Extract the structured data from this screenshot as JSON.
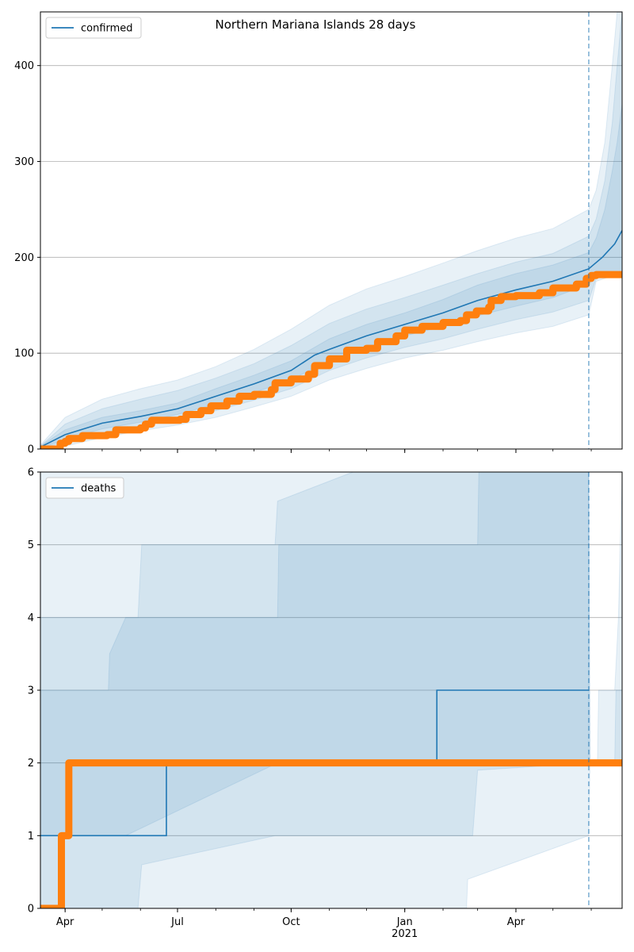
{
  "figure": {
    "title": "Northern Mariana Islands 28 days"
  },
  "colors": {
    "model": "#1f77b4",
    "observed": "#ff7f0e",
    "band": "#1f77b4",
    "grid": "#b0b0b0",
    "forecast_line": "#1f77b4"
  },
  "chart_data": [
    {
      "type": "line",
      "panel": "top",
      "legend": [
        "confirmed"
      ],
      "legend_loc": "upper left",
      "xlabel": "",
      "ylabel": "",
      "xlim": [
        "2020-03-12",
        "2021-06-26"
      ],
      "ylim": [
        0,
        456
      ],
      "y_ticks": [
        0,
        100,
        200,
        300,
        400
      ],
      "grid": "horizontal",
      "forecast_start": "2021-05-30",
      "series": [
        {
          "name": "confirmed",
          "kind": "model",
          "points": [
            [
              "2020-03-12",
              2
            ],
            [
              "2020-04-01",
              15
            ],
            [
              "2020-05-01",
              27
            ],
            [
              "2020-06-01",
              34
            ],
            [
              "2020-07-01",
              42
            ],
            [
              "2020-08-01",
              55
            ],
            [
              "2020-09-01",
              68
            ],
            [
              "2020-10-01",
              82
            ],
            [
              "2020-10-20",
              98
            ],
            [
              "2020-11-01",
              104
            ],
            [
              "2020-12-01",
              118
            ],
            [
              "2021-01-01",
              130
            ],
            [
              "2021-02-01",
              142
            ],
            [
              "2021-03-01",
              155
            ],
            [
              "2021-04-01",
              166
            ],
            [
              "2021-05-01",
              175
            ],
            [
              "2021-05-30",
              188
            ],
            [
              "2021-06-10",
              200
            ],
            [
              "2021-06-20",
              214
            ],
            [
              "2021-06-26",
              228
            ]
          ]
        },
        {
          "name": "observed",
          "kind": "observed",
          "points": [
            [
              "2020-03-12",
              0
            ],
            [
              "2020-03-27",
              0
            ],
            [
              "2020-03-28",
              6
            ],
            [
              "2020-04-01",
              8
            ],
            [
              "2020-04-04",
              11
            ],
            [
              "2020-04-15",
              14
            ],
            [
              "2020-05-05",
              15
            ],
            [
              "2020-05-12",
              20
            ],
            [
              "2020-06-01",
              22
            ],
            [
              "2020-06-05",
              26
            ],
            [
              "2020-06-10",
              30
            ],
            [
              "2020-07-03",
              31
            ],
            [
              "2020-07-08",
              36
            ],
            [
              "2020-07-20",
              40
            ],
            [
              "2020-07-28",
              45
            ],
            [
              "2020-08-10",
              50
            ],
            [
              "2020-08-20",
              55
            ],
            [
              "2020-09-01",
              57
            ],
            [
              "2020-09-15",
              62
            ],
            [
              "2020-09-18",
              69
            ],
            [
              "2020-10-01",
              73
            ],
            [
              "2020-10-15",
              78
            ],
            [
              "2020-10-20",
              87
            ],
            [
              "2020-11-01",
              94
            ],
            [
              "2020-11-15",
              103
            ],
            [
              "2020-12-01",
              105
            ],
            [
              "2020-12-10",
              112
            ],
            [
              "2020-12-25",
              118
            ],
            [
              "2021-01-01",
              124
            ],
            [
              "2021-01-15",
              128
            ],
            [
              "2021-02-01",
              132
            ],
            [
              "2021-02-15",
              134
            ],
            [
              "2021-02-20",
              140
            ],
            [
              "2021-02-28",
              144
            ],
            [
              "2021-03-10",
              148
            ],
            [
              "2021-03-12",
              155
            ],
            [
              "2021-03-20",
              159
            ],
            [
              "2021-04-01",
              160
            ],
            [
              "2021-04-20",
              163
            ],
            [
              "2021-05-01",
              168
            ],
            [
              "2021-05-20",
              172
            ],
            [
              "2021-05-28",
              178
            ],
            [
              "2021-06-01",
              181
            ],
            [
              "2021-06-05",
              182
            ],
            [
              "2021-06-26",
              182
            ]
          ]
        }
      ],
      "bands": [
        {
          "label_hidden": "outer",
          "points": [
            [
              "2020-03-12",
              0,
              4
            ],
            [
              "2020-04-01",
              3,
              33
            ],
            [
              "2020-05-01",
              12,
              52
            ],
            [
              "2020-06-01",
              19,
              63
            ],
            [
              "2020-07-01",
              25,
              72
            ],
            [
              "2020-08-01",
              33,
              86
            ],
            [
              "2020-09-01",
              44,
              104
            ],
            [
              "2020-10-01",
              55,
              125
            ],
            [
              "2020-11-01",
              72,
              150
            ],
            [
              "2020-12-01",
              84,
              167
            ],
            [
              "2021-01-01",
              95,
              180
            ],
            [
              "2021-02-01",
              103,
              194
            ],
            [
              "2021-03-01",
              112,
              207
            ],
            [
              "2021-04-01",
              121,
              220
            ],
            [
              "2021-05-01",
              128,
              230
            ],
            [
              "2021-05-30",
              140,
              250
            ],
            [
              "2021-06-05",
              175,
              270
            ],
            [
              "2021-06-12",
              178,
              320
            ],
            [
              "2021-06-18",
              180,
              400
            ],
            [
              "2021-06-22",
              181,
              456
            ],
            [
              "2021-06-26",
              182,
              456
            ]
          ]
        },
        {
          "label_hidden": "middle",
          "points": [
            [
              "2020-03-12",
              1,
              3
            ],
            [
              "2020-04-01",
              7,
              26
            ],
            [
              "2020-05-01",
              17,
              42
            ],
            [
              "2020-06-01",
              24,
              52
            ],
            [
              "2020-07-01",
              31,
              61
            ],
            [
              "2020-08-01",
              40,
              74
            ],
            [
              "2020-09-01",
              51,
              89
            ],
            [
              "2020-10-01",
              63,
              108
            ],
            [
              "2020-11-01",
              82,
              131
            ],
            [
              "2020-12-01",
              95,
              146
            ],
            [
              "2021-01-01",
              106,
              158
            ],
            [
              "2021-02-01",
              115,
              171
            ],
            [
              "2021-03-01",
              125,
              183
            ],
            [
              "2021-04-01",
              135,
              195
            ],
            [
              "2021-05-01",
              143,
              204
            ],
            [
              "2021-05-30",
              155,
              222
            ],
            [
              "2021-06-05",
              178,
              240
            ],
            [
              "2021-06-12",
              180,
              280
            ],
            [
              "2021-06-18",
              181,
              340
            ],
            [
              "2021-06-22",
              182,
              400
            ],
            [
              "2021-06-26",
              182,
              456
            ]
          ]
        },
        {
          "label_hidden": "inner",
          "points": [
            [
              "2020-03-12",
              1,
              3
            ],
            [
              "2020-04-01",
              10,
              20
            ],
            [
              "2020-05-01",
              21,
              33
            ],
            [
              "2020-06-01",
              28,
              40
            ],
            [
              "2020-07-01",
              36,
              48
            ],
            [
              "2020-08-01",
              47,
              63
            ],
            [
              "2020-09-01",
              59,
              77
            ],
            [
              "2020-10-01",
              72,
              92
            ],
            [
              "2020-11-01",
              93,
              115
            ],
            [
              "2020-12-01",
              106,
              130
            ],
            [
              "2021-01-01",
              118,
              142
            ],
            [
              "2021-02-01",
              128,
              156
            ],
            [
              "2021-03-01",
              139,
              171
            ],
            [
              "2021-04-01",
              149,
              183
            ],
            [
              "2021-05-01",
              158,
              192
            ],
            [
              "2021-05-30",
              172,
              205
            ],
            [
              "2021-06-05",
              181,
              220
            ],
            [
              "2021-06-12",
              182,
              250
            ],
            [
              "2021-06-18",
              182,
              290
            ],
            [
              "2021-06-22",
              182,
              320
            ],
            [
              "2021-06-26",
              182,
              360
            ]
          ]
        }
      ],
      "x_major_ticks": [
        {
          "date": "2020-04-01",
          "label": "Apr"
        },
        {
          "date": "2020-07-01",
          "label": "Jul"
        },
        {
          "date": "2020-10-01",
          "label": "Oct"
        },
        {
          "date": "2021-01-01",
          "label": "Jan\n2021"
        },
        {
          "date": "2021-04-01",
          "label": "Apr"
        }
      ]
    },
    {
      "type": "line",
      "panel": "bottom",
      "legend": [
        "deaths"
      ],
      "legend_loc": "upper left",
      "xlabel": "",
      "ylabel": "",
      "xlim": [
        "2020-03-12",
        "2021-06-26"
      ],
      "ylim": [
        0,
        6
      ],
      "y_ticks": [
        0,
        1,
        2,
        3,
        4,
        5,
        6
      ],
      "grid": "horizontal",
      "forecast_start": "2021-05-30",
      "series": [
        {
          "name": "deaths",
          "kind": "model",
          "step": true,
          "points": [
            [
              "2020-03-12",
              1
            ],
            [
              "2020-06-21",
              1
            ],
            [
              "2020-06-22",
              2
            ],
            [
              "2021-01-24",
              2
            ],
            [
              "2021-01-27",
              3
            ],
            [
              "2021-05-30",
              3
            ]
          ]
        },
        {
          "name": "observed",
          "kind": "observed",
          "points": [
            [
              "2020-03-12",
              0
            ],
            [
              "2020-03-28",
              0
            ],
            [
              "2020-03-29",
              1
            ],
            [
              "2020-04-03",
              1
            ],
            [
              "2020-04-04",
              2
            ],
            [
              "2021-06-26",
              2
            ]
          ]
        }
      ],
      "bands": [
        {
          "label_hidden": "outer",
          "points": [
            [
              "2020-03-12",
              0,
              6
            ],
            [
              "2021-02-20",
              0,
              6
            ],
            [
              "2021-02-21",
              0.4,
              6
            ],
            [
              "2021-05-30",
              1,
              6
            ],
            [
              "2021-05-31",
              2,
              2
            ],
            [
              "2021-06-06",
              2,
              2
            ],
            [
              "2021-06-07",
              2,
              3
            ],
            [
              "2021-06-20",
              2,
              3
            ],
            [
              "2021-06-23",
              2,
              4
            ],
            [
              "2021-06-26",
              2,
              6
            ]
          ]
        },
        {
          "label_hidden": "middle",
          "points": [
            [
              "2020-03-12",
              0,
              4
            ],
            [
              "2020-05-30",
              0,
              4
            ],
            [
              "2020-06-02",
              0.6,
              5
            ],
            [
              "2020-09-18",
              1,
              5
            ],
            [
              "2020-09-20",
              1,
              5.6
            ],
            [
              "2020-11-20",
              1,
              6
            ],
            [
              "2021-02-25",
              1,
              6
            ],
            [
              "2021-03-01",
              1.9,
              6
            ],
            [
              "2021-05-30",
              2,
              6
            ],
            [
              "2021-05-31",
              2,
              2
            ],
            [
              "2021-06-20",
              2,
              2
            ],
            [
              "2021-06-21",
              2,
              3
            ],
            [
              "2021-06-26",
              2,
              3
            ]
          ]
        },
        {
          "label_hidden": "inner",
          "points": [
            [
              "2020-03-12",
              1,
              3
            ],
            [
              "2020-05-06",
              1,
              3
            ],
            [
              "2020-05-07",
              1,
              3.5
            ],
            [
              "2020-05-20",
              1,
              4
            ],
            [
              "2020-09-20",
              2,
              4
            ],
            [
              "2020-09-21",
              2,
              5
            ],
            [
              "2021-03-01",
              2,
              5
            ],
            [
              "2021-03-02",
              2,
              6
            ],
            [
              "2021-05-30",
              2,
              6
            ]
          ]
        }
      ],
      "x_major_ticks": [
        {
          "date": "2020-04-01",
          "label": "Apr"
        },
        {
          "date": "2020-07-01",
          "label": "Jul"
        },
        {
          "date": "2020-10-01",
          "label": "Oct"
        },
        {
          "date": "2021-01-01",
          "label": "Jan\n2021"
        },
        {
          "date": "2021-04-01",
          "label": "Apr"
        }
      ]
    }
  ]
}
